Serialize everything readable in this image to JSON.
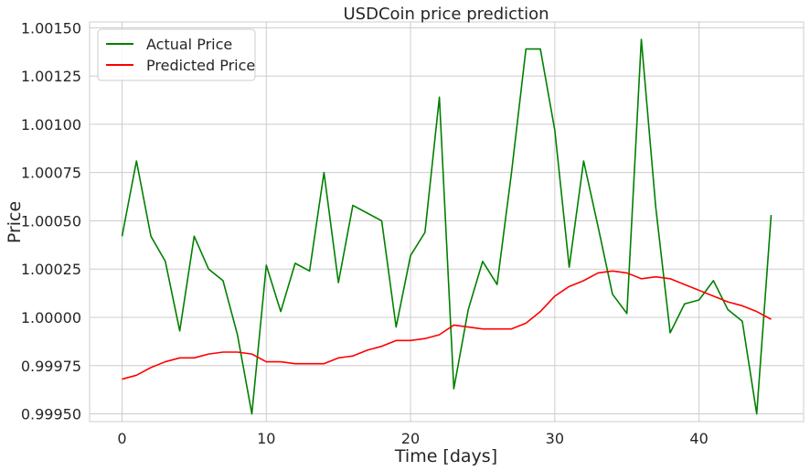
{
  "chart_data": {
    "type": "line",
    "title": "USDCoin price prediction",
    "xlabel": "Time [days]",
    "ylabel": "Price",
    "xlim": [
      -2.25,
      47.25
    ],
    "ylim": [
      0.99946,
      1.00153
    ],
    "xticks": [
      0,
      10,
      20,
      30,
      40
    ],
    "xtick_labels": [
      "0",
      "10",
      "20",
      "30",
      "40"
    ],
    "yticks": [
      0.9995,
      0.99975,
      1.0,
      1.00025,
      1.0005,
      1.00075,
      1.001,
      1.00125,
      1.0015
    ],
    "ytick_labels": [
      "0.99950",
      "0.99975",
      "1.00000",
      "1.00025",
      "1.00050",
      "1.00075",
      "1.00100",
      "1.00125",
      "1.00150"
    ],
    "grid": true,
    "legend_position": "upper-left",
    "x": [
      0,
      1,
      2,
      3,
      4,
      5,
      6,
      7,
      8,
      9,
      10,
      11,
      12,
      13,
      14,
      15,
      16,
      17,
      18,
      19,
      20,
      21,
      22,
      23,
      24,
      25,
      26,
      27,
      28,
      29,
      30,
      31,
      32,
      33,
      34,
      35,
      36,
      37,
      38,
      39,
      40,
      41,
      42,
      43,
      44,
      45
    ],
    "series": [
      {
        "name": "Actual Price",
        "color": "#008000",
        "values": [
          1.00042,
          1.00081,
          1.00042,
          1.00029,
          0.99993,
          1.00042,
          1.00025,
          1.00019,
          0.99991,
          0.9995,
          1.00027,
          1.00003,
          1.00028,
          1.00024,
          1.00075,
          1.00018,
          1.00058,
          1.00054,
          1.0005,
          0.99995,
          1.00032,
          1.00044,
          1.00114,
          0.99963,
          1.00004,
          1.00029,
          1.00017,
          1.00075,
          1.00139,
          1.00139,
          1.00097,
          1.00026,
          1.00081,
          1.00047,
          1.00012,
          1.00002,
          1.00144,
          1.00057,
          0.99992,
          1.00007,
          1.00009,
          1.00019,
          1.00004,
          0.99998,
          0.9995,
          1.00053
        ]
      },
      {
        "name": "Predicted Price",
        "color": "#ff0000",
        "values": [
          0.99968,
          0.9997,
          0.99974,
          0.99977,
          0.99979,
          0.99979,
          0.99981,
          0.99982,
          0.99982,
          0.99981,
          0.99977,
          0.99977,
          0.99976,
          0.99976,
          0.99976,
          0.99979,
          0.9998,
          0.99983,
          0.99985,
          0.99988,
          0.99988,
          0.99989,
          0.99991,
          0.99996,
          0.99995,
          0.99994,
          0.99994,
          0.99994,
          0.99997,
          1.00003,
          1.00011,
          1.00016,
          1.00019,
          1.00023,
          1.00024,
          1.00023,
          1.0002,
          1.00021,
          1.0002,
          1.00017,
          1.00014,
          1.00011,
          1.00008,
          1.00006,
          1.00003,
          0.99999
        ]
      }
    ]
  }
}
